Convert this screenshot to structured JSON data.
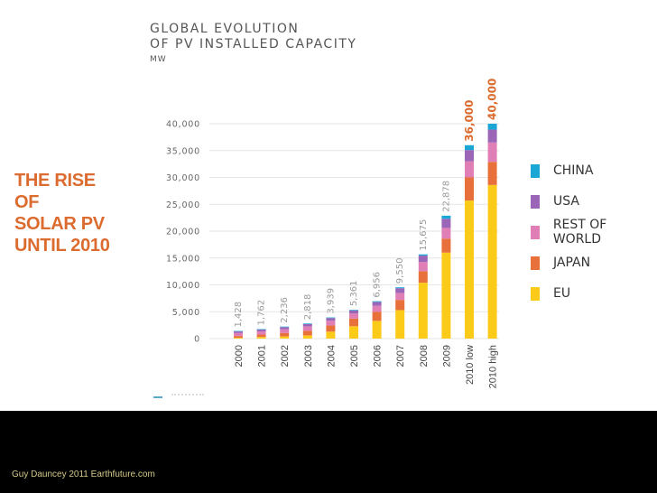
{
  "slide": {
    "heading_lines": [
      "THE RISE",
      "OF",
      "SOLAR PV",
      "UNTIL 2010"
    ],
    "credit": "Guy Dauncey 2011 Earthfuture.com"
  },
  "chart_data": {
    "type": "bar",
    "stacked": true,
    "title": "GLOBAL EVOLUTION OF PV INSTALLED CAPACITY",
    "title_lines": [
      "GLOBAL EVOLUTION",
      "OF PV INSTALLED CAPACITY"
    ],
    "unit": "MW",
    "xlabel": "",
    "ylabel": "MW",
    "ylim": [
      0,
      40000
    ],
    "yticks": [
      0,
      5000,
      10000,
      15000,
      20000,
      25000,
      30000,
      35000,
      40000
    ],
    "ytick_labels": [
      "0",
      "5,000",
      "10,000",
      "15,000",
      "20,000",
      "25,000",
      "30,000",
      "35,000",
      "40,000"
    ],
    "grid": true,
    "legend_position": "right",
    "categories": [
      "2000",
      "2001",
      "2002",
      "2003",
      "2004",
      "2005",
      "2006",
      "2007",
      "2008",
      "2009",
      "2010 low",
      "2010 high"
    ],
    "totals": [
      1428,
      1762,
      2236,
      2818,
      3939,
      5361,
      6956,
      9550,
      15675,
      22878,
      36000,
      40000
    ],
    "total_labels": [
      "1,428",
      "1,762",
      "2,236",
      "2,818",
      "3,939",
      "5,361",
      "6,956",
      "9,550",
      "15,675",
      "22,878",
      "36,000",
      "40,000"
    ],
    "highlight_total_labels": [
      false,
      false,
      false,
      false,
      false,
      false,
      false,
      false,
      false,
      false,
      true,
      true
    ],
    "series": [
      {
        "name": "EU",
        "color": "#fccb1a",
        "values": [
          150,
          300,
          400,
          600,
          1300,
          2300,
          3300,
          5300,
          10400,
          16000,
          25700,
          28600
        ]
      },
      {
        "name": "JAPAN",
        "color": "#e8703a",
        "values": [
          330,
          450,
          640,
          860,
          1130,
          1420,
          1700,
          1900,
          2150,
          2600,
          4300,
          4300
        ]
      },
      {
        "name": "REST OF WORLD",
        "color": "#e07fb5",
        "values": [
          550,
          600,
          700,
          820,
          900,
          950,
          1100,
          1300,
          1700,
          2000,
          3000,
          3600
        ]
      },
      {
        "name": "USA",
        "color": "#9b66b8",
        "values": [
          300,
          330,
          400,
          420,
          500,
          580,
          720,
          880,
          1200,
          1700,
          2100,
          2400
        ]
      },
      {
        "name": "CHINA",
        "color": "#1aa7d6",
        "values": [
          98,
          82,
          96,
          118,
          109,
          111,
          136,
          170,
          225,
          578,
          900,
          1100
        ]
      }
    ],
    "legend": [
      {
        "name": "CHINA",
        "color": "#1aa7d6"
      },
      {
        "name": "USA",
        "color": "#9b66b8"
      },
      {
        "name": "REST OF WORLD",
        "color": "#e07fb5"
      },
      {
        "name": "JAPAN",
        "color": "#e8703a"
      },
      {
        "name": "EU",
        "color": "#fccb1a"
      }
    ],
    "colors": {
      "axis_text": "#666666",
      "value_label": "#999999",
      "highlight_label": "#dc6b2f",
      "gridline": "#e6e6e6"
    }
  }
}
